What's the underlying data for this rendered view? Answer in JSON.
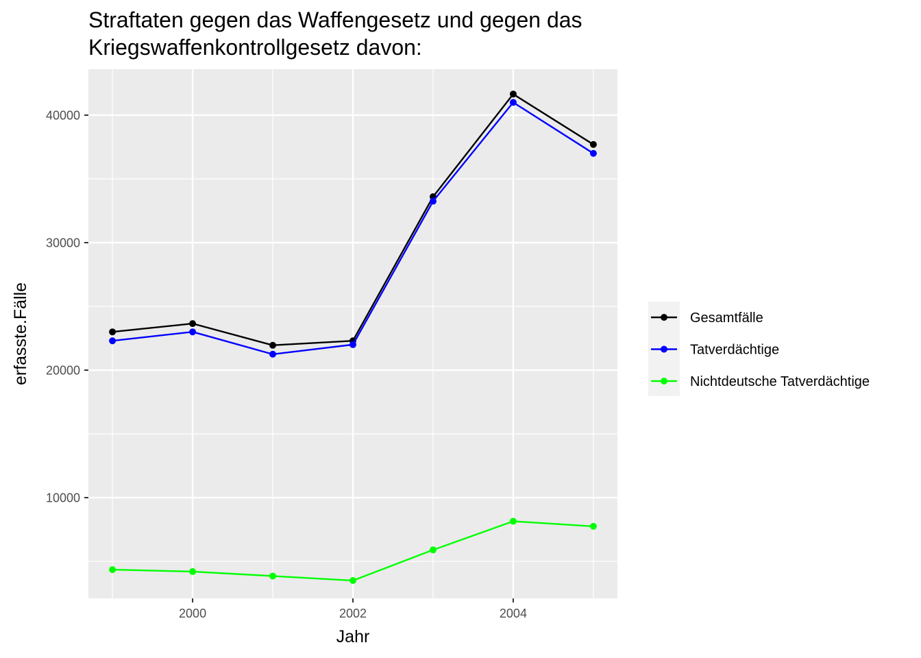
{
  "chart_data": {
    "type": "line",
    "title_lines": [
      "Straftaten gegen das Waffengesetz und gegen das",
      "Kriegswaffenkontrollgesetz davon:"
    ],
    "xlabel": "Jahr",
    "ylabel": "erfasste.Fälle",
    "x": [
      1999,
      2000,
      2001,
      2002,
      2003,
      2004,
      2005
    ],
    "xlim": [
      1998.7,
      2005.3
    ],
    "ylim": [
      2100,
      43600
    ],
    "x_ticks": [
      2000,
      2002,
      2004
    ],
    "x_tick_labels": [
      "2000",
      "2002",
      "2004"
    ],
    "y_ticks": [
      10000,
      20000,
      30000,
      40000
    ],
    "y_tick_labels": [
      "10000",
      "20000",
      "30000",
      "40000"
    ],
    "x_minor": [
      1999,
      2001,
      2003,
      2005
    ],
    "y_minor": [
      5000,
      15000,
      25000,
      35000
    ],
    "grid": true,
    "legend_position": "right",
    "series": [
      {
        "name": "Gesamtfälle",
        "color": "#000000",
        "values": [
          23000,
          23650,
          21950,
          22300,
          33600,
          41650,
          37700
        ]
      },
      {
        "name": "Tatverdächtige",
        "color": "#0000ff",
        "values": [
          22300,
          23000,
          21250,
          22000,
          33250,
          41000,
          37000
        ]
      },
      {
        "name": "Nichtdeutsche Tatverdächtige",
        "color": "#00ff00",
        "values": [
          4350,
          4200,
          3850,
          3500,
          5900,
          8150,
          7750
        ]
      }
    ]
  }
}
